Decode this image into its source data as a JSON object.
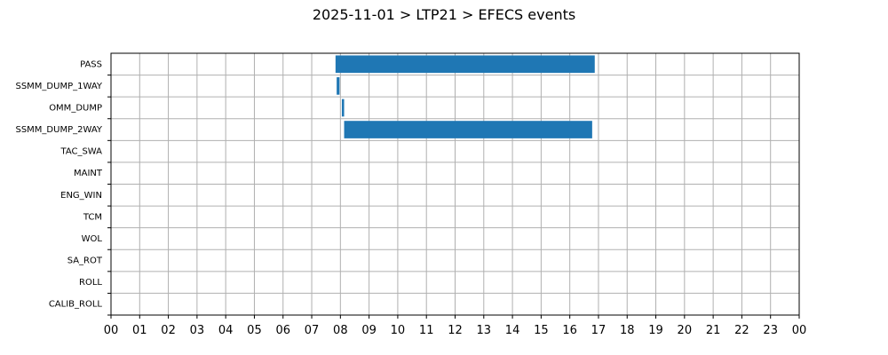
{
  "chart_data": {
    "type": "gantt",
    "title": "2025-11-01 > LTP21 > EFECS events",
    "xlabel": "",
    "ylabel": "",
    "xlim": [
      0,
      24
    ],
    "grid": true,
    "x_tick_labels": [
      "00",
      "01",
      "02",
      "03",
      "04",
      "05",
      "06",
      "07",
      "08",
      "09",
      "10",
      "11",
      "12",
      "13",
      "14",
      "15",
      "16",
      "17",
      "18",
      "19",
      "20",
      "21",
      "22",
      "23",
      "00"
    ],
    "categories": [
      "PASS",
      "SSMM_DUMP_1WAY",
      "OMM_DUMP",
      "SSMM_DUMP_2WAY",
      "TAC_SWA",
      "MAINT",
      "ENG_WIN",
      "TCM",
      "WOL",
      "SA_ROT",
      "ROLL",
      "CALIB_ROLL"
    ],
    "events": [
      {
        "category": "PASS",
        "start": 7.83,
        "end": 16.87
      },
      {
        "category": "SSMM_DUMP_1WAY",
        "start": 7.87,
        "end": 7.97
      },
      {
        "category": "OMM_DUMP",
        "start": 8.05,
        "end": 8.13
      },
      {
        "category": "SSMM_DUMP_2WAY",
        "start": 8.13,
        "end": 16.78
      }
    ],
    "bar_color": "#1f77b4",
    "grid_color": "#b0b0b0"
  }
}
